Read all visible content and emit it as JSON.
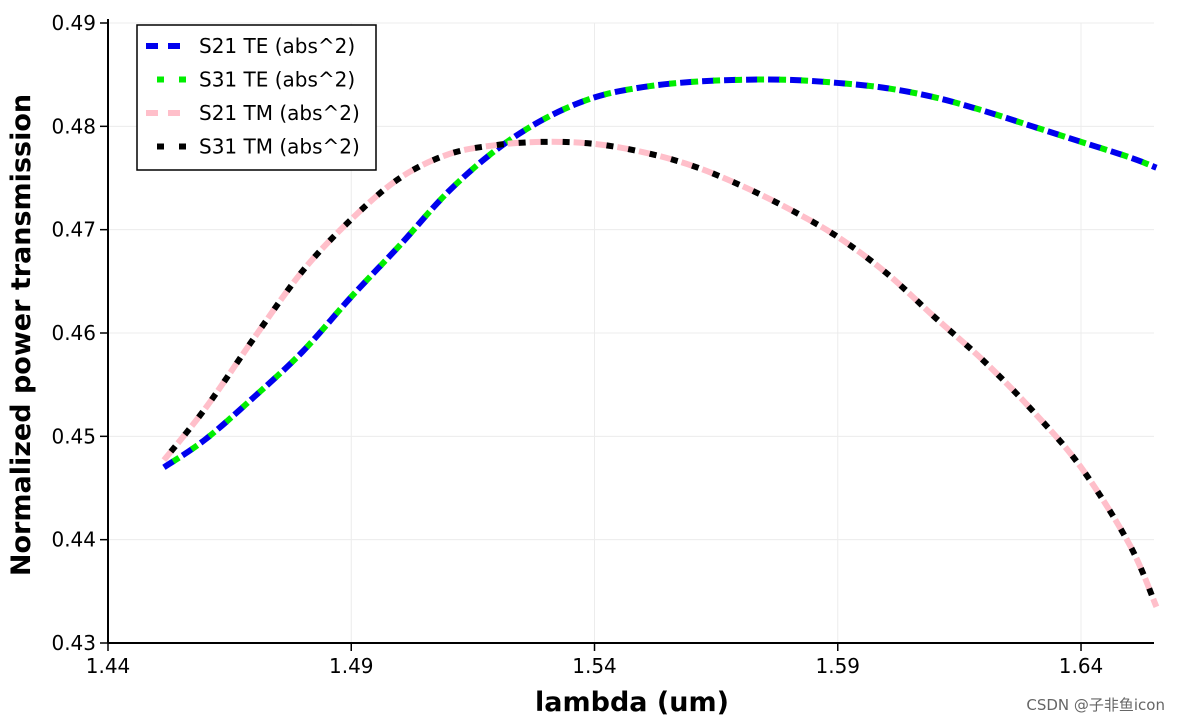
{
  "chart_data": {
    "type": "line",
    "title": "",
    "xlabel": "lambda (um)",
    "ylabel": "Normalized power transmission",
    "xlim": [
      1.44,
      1.655
    ],
    "ylim": [
      0.43,
      0.49
    ],
    "grid": true,
    "legend_position": "top-left",
    "x_ticks": [
      1.44,
      1.49,
      1.54,
      1.59,
      1.64
    ],
    "x_tick_labels": [
      "1.44",
      "1.49",
      "1.54",
      "1.59",
      "1.64"
    ],
    "y_ticks": [
      0.43,
      0.44,
      0.45,
      0.46,
      0.47,
      0.48,
      0.49
    ],
    "y_tick_labels": [
      "0.43",
      "0.44",
      "0.45",
      "0.46",
      "0.47",
      "0.48",
      "0.49"
    ],
    "x": [
      1.4515,
      1.46,
      1.47,
      1.48,
      1.49,
      1.5,
      1.51,
      1.52,
      1.53,
      1.54,
      1.55,
      1.56,
      1.57,
      1.58,
      1.59,
      1.6,
      1.61,
      1.62,
      1.63,
      1.64,
      1.65,
      1.6555
    ],
    "series": [
      {
        "name": "S21 TE (abs^2)",
        "color": "#0000ee",
        "dash": "dash",
        "values": [
          0.447,
          0.4497,
          0.4538,
          0.4582,
          0.4635,
          0.4685,
          0.4737,
          0.4778,
          0.4808,
          0.4828,
          0.4838,
          0.4843,
          0.4845,
          0.4845,
          0.4842,
          0.4837,
          0.4828,
          0.4815,
          0.48,
          0.4785,
          0.477,
          0.476
        ]
      },
      {
        "name": "S31 TE (abs^2)",
        "color": "#00ee00",
        "dash": "dot",
        "values": [
          0.447,
          0.4497,
          0.4538,
          0.4582,
          0.4635,
          0.4685,
          0.4737,
          0.4778,
          0.4808,
          0.4828,
          0.4838,
          0.4843,
          0.4845,
          0.4845,
          0.4842,
          0.4837,
          0.4828,
          0.4815,
          0.48,
          0.4785,
          0.477,
          0.476
        ]
      },
      {
        "name": "S21 TM (abs^2)",
        "color": "#ffbfca",
        "dash": "dash",
        "values": [
          0.4477,
          0.4527,
          0.4595,
          0.466,
          0.471,
          0.475,
          0.4773,
          0.4782,
          0.4785,
          0.4783,
          0.4775,
          0.4762,
          0.4743,
          0.472,
          0.4693,
          0.4658,
          0.4615,
          0.4573,
          0.4525,
          0.447,
          0.4395,
          0.4335
        ]
      },
      {
        "name": "S31 TM (abs^2)",
        "color": "#000000",
        "dash": "dot",
        "values": [
          0.4477,
          0.4527,
          0.4595,
          0.466,
          0.471,
          0.475,
          0.4773,
          0.4782,
          0.4785,
          0.4783,
          0.4775,
          0.4762,
          0.4743,
          0.472,
          0.4693,
          0.4658,
          0.4615,
          0.4573,
          0.4525,
          0.447,
          0.4395,
          0.4335
        ]
      }
    ]
  },
  "watermark": "CSDN @子非鱼icon"
}
